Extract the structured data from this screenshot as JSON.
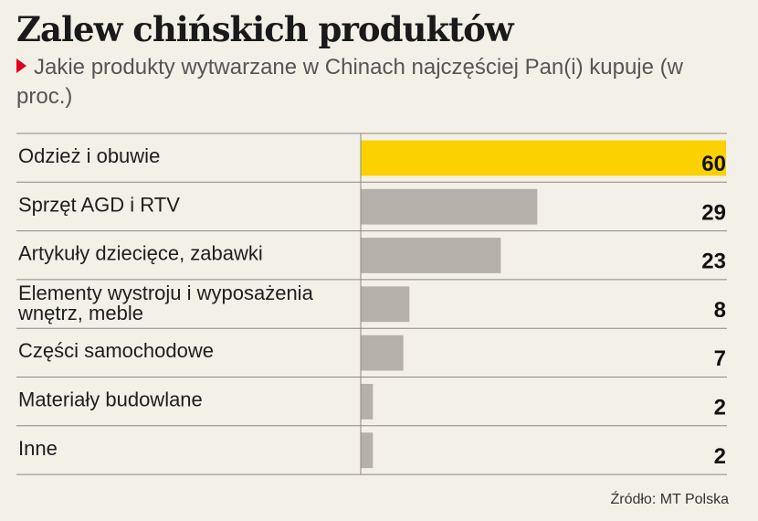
{
  "header": {
    "title": "Zalew chińskich produktów",
    "subtitle": "Jakie produkty wytwarzane w Chinach najczęściej Pan(i) kupuje (w proc.)"
  },
  "source": "Źródło: MT Polska",
  "colors": {
    "highlight": "#fbd100",
    "bar": "#b5b0a8",
    "marker": "#e2001a"
  },
  "chart_data": {
    "type": "bar",
    "orientation": "horizontal",
    "categories": [
      "Odzież i obuwie",
      "Sprzęt AGD i RTV",
      "Artykuły dziecięce, zabawki",
      "Elementy wystroju i wyposażenia wnętrz, meble",
      "Części samochodowe",
      "Materiały budowlane",
      "Inne"
    ],
    "values": [
      60,
      29,
      23,
      8,
      7,
      2,
      2
    ],
    "highlight_index": 0,
    "xlim": [
      0,
      60
    ]
  }
}
